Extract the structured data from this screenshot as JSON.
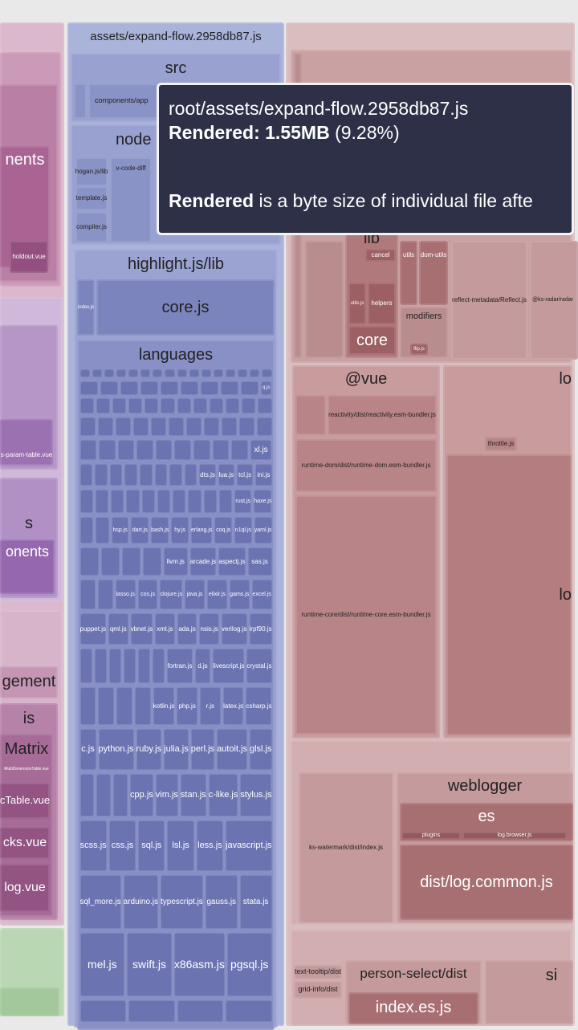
{
  "left": {
    "nents": "nents",
    "holdout": "holdout.vue",
    "param_table": "s-param-table.vue",
    "s": "s",
    "onents": "onents",
    "gement": "gement",
    "is": "is",
    "matrix": "Matrix",
    "multi": "MultiDimensionTable.vue",
    "ctable": "cTable.vue",
    "cks": "cks.vue",
    "log": "log.vue"
  },
  "middle": {
    "title": "assets/expand-flow.2958db87.js",
    "src": "src",
    "components": "components/app",
    "node": "node",
    "hogan": "hogan.js/lib",
    "template": "template.js",
    "compiler": "compiler.js",
    "vcodediff": "v-code-diff",
    "highlight": "highlight.js/lib",
    "index": "index.js",
    "core": "core.js",
    "languages": {
      "title": "languages",
      "rows": [
        [
          "q.js"
        ],
        [
          "xl.js"
        ],
        [
          "dts.js",
          "lua.js",
          "tcl.js",
          "ini.js"
        ],
        [
          "rust.js",
          "haxe.js"
        ],
        [
          "hsp.js",
          "dart.js",
          "bash.js",
          "hy.js",
          "erlang.js",
          "coq.js",
          "n1ql.js",
          "yaml.js"
        ],
        [
          "llvm.js",
          "arcade.js",
          "aspectj.js",
          "sas.js"
        ],
        [
          "lasso.js",
          "cos.js",
          "clojure.js",
          "java.js",
          "elixir.js",
          "gams.js",
          "excel.js"
        ],
        [
          "puppet.js",
          "qml.js",
          "vbnet.js",
          "xml.js",
          "ada.js",
          "nsis.js",
          "verilog.js",
          "irpf90.js"
        ],
        [
          "fortran.js",
          "d.js",
          "livescript.js",
          "crystal.js"
        ],
        [
          "kotlin.js",
          "php.js",
          "r.js",
          "latex.js",
          "csharp.js"
        ],
        [
          "c.js",
          "python.js",
          "ruby.js",
          "julia.js",
          "perl.js",
          "autoit.js",
          "glsl.js"
        ],
        [
          "cpp.js",
          "vim.js",
          "stan.js",
          "c-like.js",
          "stylus.js"
        ],
        [
          "scss.js",
          "css.js",
          "sql.js",
          "lsl.js",
          "less.js",
          "javascript.js"
        ],
        [
          "sql_more.js",
          "arduino.js",
          "typescript.js",
          "gauss.js",
          "stata.js"
        ],
        [
          "mel.js",
          "swift.js",
          "x86asm.js",
          "pgsql.js"
        ]
      ]
    }
  },
  "right": {
    "lib": "lib",
    "cancel": "cancel",
    "utils_js": "utils.js",
    "helpers": "helpers",
    "core": "core",
    "utils": "utils",
    "dom_utils": "dom-utils",
    "modifiers": "modifiers",
    "flip": "flip.js",
    "reflect": "reflect-metadata/Reflect.js",
    "radar": "@ks-radar/radar",
    "vue": "@vue",
    "reactivity": "reactivity/dist/reactivity.esm-bundler.js",
    "runtime_dom": "runtime-dom/dist/runtime-dom.esm-bundler.js",
    "runtime_core": "runtime-core/dist/runtime-core.esm-bundler.js",
    "lo": "lo",
    "throttle": "throttle.js",
    "lo_big": "lo",
    "watermark": "ks-watermark/dist/index.js",
    "weblogger": "weblogger",
    "es": "es",
    "plugins": "plugins",
    "log_browser": "log.browser.js",
    "log_common": "dist/log.common.js",
    "text_tooltip": "text-tooltip/dist",
    "grid_info": "grid-info/dist",
    "person_select": "person-select/dist",
    "index_es": "index.es.js",
    "si": "si"
  },
  "tooltip": {
    "path": "root/assets/expand-flow.2958db87.js",
    "size_label": "Rendered:",
    "size": "1.55MB",
    "percent": "(9.28%)",
    "note_term": "Rendered",
    "note": "is a byte size of individual file afte"
  }
}
